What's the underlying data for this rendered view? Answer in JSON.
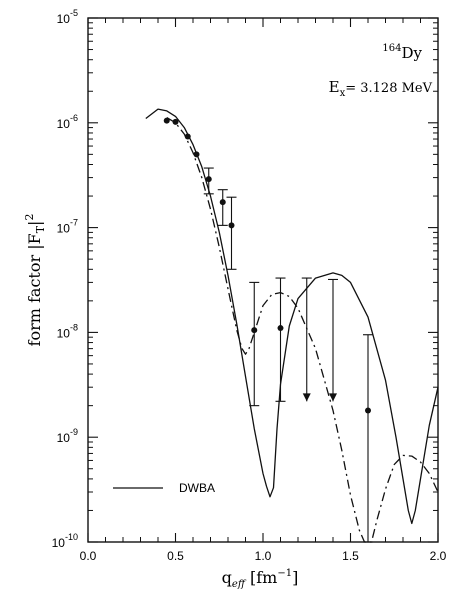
{
  "chart_data": {
    "type": "line",
    "xlabel": "q_eff [fm^-1]",
    "ylabel": "form factor |F_T|^2",
    "xlim": [
      0.0,
      2.0
    ],
    "ylim": [
      1e-10,
      1e-05
    ],
    "yscale": "log",
    "grid": false,
    "x_ticks": [
      "0.0",
      "0.5",
      "1.0",
      "1.5",
      "2.0"
    ],
    "y_ticks": [
      {
        "base": "10",
        "exp": "-10",
        "value": 1e-10
      },
      {
        "base": "10",
        "exp": "-9",
        "value": 1e-09
      },
      {
        "base": "10",
        "exp": "-8",
        "value": 1e-08
      },
      {
        "base": "10",
        "exp": "-7",
        "value": 1e-07
      },
      {
        "base": "10",
        "exp": "-6",
        "value": 1e-06
      },
      {
        "base": "10",
        "exp": "-5",
        "value": 1e-05
      }
    ],
    "annotation": {
      "nucleus_mass": "164",
      "nucleus_symbol": "Dy",
      "ex_label": "E",
      "ex_sub": "x",
      "ex_value": "= 3.128 MeV"
    },
    "legend": {
      "position": "bottom-left",
      "entries": [
        {
          "label": "DWBA",
          "style": "solid"
        }
      ]
    },
    "series": [
      {
        "name": "DWBA",
        "style": "solid",
        "x": [
          0.33,
          0.4,
          0.45,
          0.5,
          0.55,
          0.6,
          0.65,
          0.7,
          0.75,
          0.8,
          0.85,
          0.9,
          0.95,
          1.0,
          1.02,
          1.04,
          1.06,
          1.08,
          1.1,
          1.15,
          1.2,
          1.3,
          1.4,
          1.45,
          1.5,
          1.6,
          1.7,
          1.76,
          1.8,
          1.83,
          1.85,
          1.87,
          1.9,
          1.95,
          2.0
        ],
        "y": [
          1.1e-06,
          1.35e-06,
          1.3e-06,
          1.15e-06,
          9e-07,
          6.2e-07,
          3.8e-07,
          2e-07,
          9e-08,
          3.5e-08,
          1.2e-08,
          3.8e-09,
          1.2e-09,
          4.5e-10,
          3.4e-10,
          2.7e-10,
          3.3e-10,
          1.2e-09,
          3.2e-09,
          1.15e-08,
          2.1e-08,
          3.3e-08,
          3.7e-08,
          3.5e-08,
          3e-08,
          1.4e-08,
          3.5e-09,
          1e-09,
          4e-10,
          2e-10,
          1.5e-10,
          2e-10,
          4e-10,
          1.3e-09,
          3e-09
        ]
      },
      {
        "name": "",
        "style": "dashed",
        "x": [
          0.45,
          0.5,
          0.55,
          0.6,
          0.65,
          0.7,
          0.75,
          0.8,
          0.85,
          0.88,
          0.9,
          0.92,
          0.95,
          1.0,
          1.05,
          1.1,
          1.15,
          1.2,
          1.3,
          1.4,
          1.45,
          1.5,
          1.55,
          1.58,
          1.6,
          1.62,
          1.65,
          1.7,
          1.75,
          1.8,
          1.85,
          1.9,
          1.95,
          2.0
        ],
        "y": [
          1.12e-06,
          1e-06,
          7.8e-07,
          5.2e-07,
          3e-07,
          1.5e-07,
          6.5e-08,
          2.6e-08,
          1.05e-08,
          7e-09,
          6.2e-09,
          7e-09,
          1e-08,
          1.8e-08,
          2.3e-08,
          2.4e-08,
          2.2e-08,
          1.7e-08,
          7e-09,
          1.8e-09,
          7.5e-10,
          2.8e-10,
          1.3e-10,
          1e-10,
          1e-10,
          1e-10,
          1.6e-10,
          3.2e-10,
          5.5e-10,
          6.7e-10,
          6.6e-10,
          5.8e-10,
          4.5e-10,
          3e-10
        ]
      }
    ],
    "data_points": [
      {
        "x": 0.45,
        "y": 1.05e-06,
        "err_low": null,
        "err_high": null,
        "upper_limit": false
      },
      {
        "x": 0.5,
        "y": 1.02e-06,
        "err_low": null,
        "err_high": null,
        "upper_limit": false
      },
      {
        "x": 0.57,
        "y": 7.4e-07,
        "err_low": null,
        "err_high": null,
        "upper_limit": false
      },
      {
        "x": 0.62,
        "y": 5e-07,
        "err_low": null,
        "err_high": null,
        "upper_limit": false
      },
      {
        "x": 0.69,
        "y": 2.9e-07,
        "err_low": 2.1e-07,
        "err_high": 3.7e-07,
        "upper_limit": false
      },
      {
        "x": 0.77,
        "y": 1.75e-07,
        "err_low": 1.05e-07,
        "err_high": 2.3e-07,
        "upper_limit": false
      },
      {
        "x": 0.82,
        "y": 1.05e-07,
        "err_low": 4e-08,
        "err_high": 1.95e-07,
        "upper_limit": false
      },
      {
        "x": 0.95,
        "y": 1.05e-08,
        "err_low": 2e-09,
        "err_high": 3e-08,
        "upper_limit": false
      },
      {
        "x": 1.1,
        "y": 1.1e-08,
        "err_low": 2.2e-09,
        "err_high": 3.3e-08,
        "upper_limit": false
      },
      {
        "x": 1.25,
        "y": null,
        "err_low": 2.2e-09,
        "err_high": 3.3e-08,
        "upper_limit": true
      },
      {
        "x": 1.4,
        "y": null,
        "err_low": 2.2e-09,
        "err_high": 3.2e-08,
        "upper_limit": true
      },
      {
        "x": 1.6,
        "y": 1.8e-09,
        "err_low": 1e-10,
        "err_high": 9.5e-09,
        "upper_limit": false
      }
    ]
  }
}
